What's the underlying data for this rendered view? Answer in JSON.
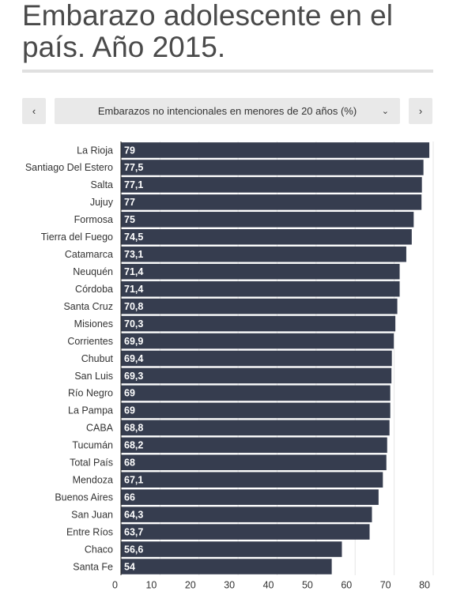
{
  "header": {
    "title": "Embarazo adolescente en el país. Año 2015."
  },
  "chart_data": {
    "type": "hbar",
    "subtitle": "Embarazos no intencionales en menores de 20 años (%)",
    "categories": [
      "La Rioja",
      "Santiago Del Estero",
      "Salta",
      "Jujuy",
      "Formosa",
      "Tierra del Fuego",
      "Catamarca",
      "Neuquén",
      "Córdoba",
      "Santa Cruz",
      "Misiones",
      "Corrientes",
      "Chubut",
      "San Luis",
      "Río Negro",
      "La Pampa",
      "CABA",
      "Tucumán",
      "Total País",
      "Mendoza",
      "Buenos Aires",
      "San Juan",
      "Entre Ríos",
      "Chaco",
      "Santa Fe"
    ],
    "values": [
      79,
      77.5,
      77.1,
      77,
      75,
      74.5,
      73.1,
      71.4,
      71.4,
      70.8,
      70.3,
      69.9,
      69.4,
      69.3,
      69,
      69,
      68.8,
      68.2,
      68,
      67.1,
      66,
      64.3,
      63.7,
      56.6,
      54
    ],
    "value_labels": [
      "79",
      "77,5",
      "77,1",
      "77",
      "75",
      "74,5",
      "73,1",
      "71,4",
      "71,4",
      "70,8",
      "70,3",
      "69,9",
      "69,4",
      "69,3",
      "69",
      "69",
      "68,8",
      "68,2",
      "68",
      "67,1",
      "66",
      "64,3",
      "63,7",
      "56,6",
      "54"
    ],
    "color": "#363d4f",
    "xlim": [
      0,
      80
    ],
    "xticks": [
      0,
      10,
      20,
      30,
      40,
      50,
      60,
      70,
      80
    ],
    "grid": true
  }
}
